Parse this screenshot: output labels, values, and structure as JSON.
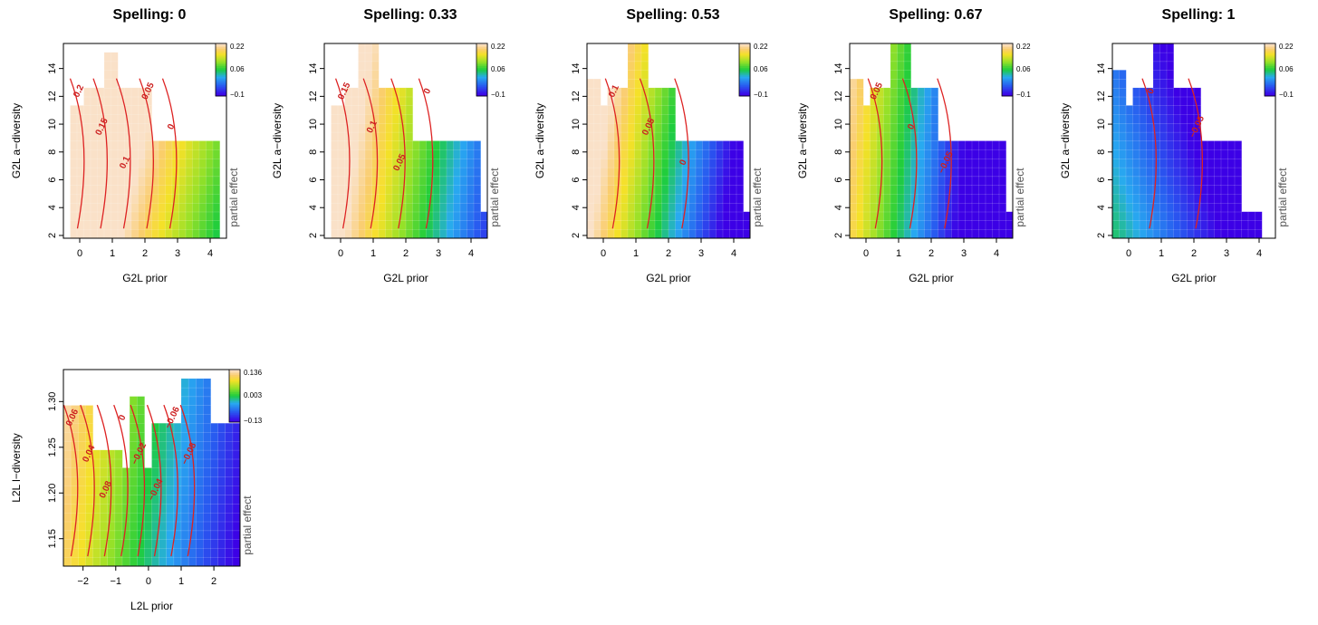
{
  "chart_data": [
    {
      "type": "heatmap",
      "title": "Spelling: 0",
      "xlabel": "G2L prior",
      "ylabel": "G2L a−diversity",
      "zlabel": "partial effect",
      "xlim": [
        -0.5,
        4.5
      ],
      "ylim": [
        1.8,
        15.8
      ],
      "xticks": [
        0,
        1,
        2,
        3,
        4
      ],
      "yticks": [
        2,
        4,
        6,
        8,
        10,
        12,
        14
      ],
      "colorbar": {
        "min": -0.1,
        "max": 0.22,
        "ticks": [
          "0.22",
          "0.06",
          "−0.1"
        ]
      },
      "z": {
        "a": 0.28,
        "bx": -0.056,
        "by": 0.006
      },
      "contours": [
        "0.2",
        "0.15",
        "0.1",
        "0.05",
        "0"
      ],
      "region": [
        [
          -0.2,
          1.3,
          8
        ],
        [
          -0.2,
          1.8,
          10
        ],
        [
          -0.2,
          2.2,
          11.5
        ],
        [
          0.1,
          2.3,
          12.5
        ],
        [
          0.8,
          1.2,
          15
        ],
        [
          2.0,
          4.2,
          8.5
        ],
        [
          2.4,
          4.3,
          4
        ],
        [
          3.1,
          4.0,
          2
        ]
      ]
    },
    {
      "type": "heatmap",
      "title": "Spelling: 0.33",
      "xlabel": "G2L prior",
      "ylabel": "G2L a−diversity",
      "zlabel": "partial effect",
      "xlim": [
        -0.5,
        4.5
      ],
      "ylim": [
        1.8,
        15.8
      ],
      "xticks": [
        0,
        1,
        2,
        3,
        4
      ],
      "yticks": [
        2,
        4,
        6,
        8,
        10,
        12,
        14
      ],
      "colorbar": {
        "min": -0.1,
        "max": 0.22,
        "ticks": [
          "0.22",
          "0.06",
          "−0.1"
        ]
      },
      "z": {
        "a": 0.22,
        "bx": -0.065,
        "by": 0.004
      },
      "contours": [
        "0.15",
        "0.1",
        "0.05",
        "0"
      ],
      "region": [
        [
          -0.2,
          1.3,
          8
        ],
        [
          -0.2,
          1.8,
          10
        ],
        [
          -0.2,
          2.2,
          11.5
        ],
        [
          0.1,
          2.3,
          12.5
        ],
        [
          0.5,
          1.2,
          15.5
        ],
        [
          2.0,
          4.3,
          8.5
        ],
        [
          2.4,
          4.5,
          4
        ],
        [
          3.1,
          4.2,
          2
        ]
      ]
    },
    {
      "type": "heatmap",
      "title": "Spelling: 0.53",
      "xlabel": "G2L prior",
      "ylabel": "G2L a−diversity",
      "zlabel": "partial effect",
      "xlim": [
        -0.5,
        4.5
      ],
      "ylim": [
        1.8,
        15.8
      ],
      "xticks": [
        0,
        1,
        2,
        3,
        4
      ],
      "yticks": [
        2,
        4,
        6,
        8,
        10,
        12,
        14
      ],
      "colorbar": {
        "min": -0.1,
        "max": 0.22,
        "ticks": [
          "0.22",
          "0.06",
          "−0.1"
        ]
      },
      "z": {
        "a": 0.18,
        "bx": -0.08,
        "by": 0.005
      },
      "contours": [
        "0.1",
        "0.05",
        "0"
      ],
      "region": [
        [
          -0.2,
          1.3,
          8
        ],
        [
          -0.2,
          1.8,
          10
        ],
        [
          -0.2,
          2.2,
          11.5
        ],
        [
          0.1,
          2.3,
          12.5
        ],
        [
          0.8,
          1.3,
          15.5
        ],
        [
          -0.4,
          0,
          13
        ],
        [
          2.0,
          4.3,
          8.5
        ],
        [
          2.4,
          4.5,
          4
        ],
        [
          3.1,
          4.2,
          2
        ]
      ]
    },
    {
      "type": "heatmap",
      "title": "Spelling: 0.67",
      "xlabel": "G2L prior",
      "ylabel": "G2L a−diversity",
      "zlabel": "partial effect",
      "xlim": [
        -0.5,
        4.5
      ],
      "ylim": [
        1.8,
        15.8
      ],
      "xticks": [
        0,
        1,
        2,
        3,
        4
      ],
      "yticks": [
        2,
        4,
        6,
        8,
        10,
        12,
        14
      ],
      "colorbar": {
        "min": -0.1,
        "max": 0.22,
        "ticks": [
          "0.22",
          "0.06",
          "−0.1"
        ]
      },
      "z": {
        "a": 0.13,
        "bx": -0.085,
        "by": 0.003
      },
      "contours": [
        "0.05",
        "0",
        "−0.05"
      ],
      "region": [
        [
          -0.2,
          1.3,
          8
        ],
        [
          -0.2,
          1.8,
          10
        ],
        [
          -0.2,
          2.2,
          11.5
        ],
        [
          0.1,
          2.3,
          12.5
        ],
        [
          0.8,
          1.3,
          15.5
        ],
        [
          -0.4,
          0,
          13
        ],
        [
          2.0,
          4.3,
          8.5
        ],
        [
          2.4,
          4.5,
          4
        ],
        [
          3.1,
          4.2,
          2
        ]
      ]
    },
    {
      "type": "heatmap",
      "title": "Spelling: 1",
      "xlabel": "G2L prior",
      "ylabel": "G2L a−diversity",
      "zlabel": "partial effect",
      "xlim": [
        -0.5,
        4.5
      ],
      "ylim": [
        1.8,
        15.8
      ],
      "xticks": [
        0,
        1,
        2,
        3,
        4
      ],
      "yticks": [
        2,
        4,
        6,
        8,
        10,
        12,
        14
      ],
      "colorbar": {
        "min": -0.1,
        "max": 0.22,
        "ticks": [
          "0.22",
          "0.06",
          "−0.1"
        ]
      },
      "z": {
        "a": 0.04,
        "bx": -0.045,
        "by": -0.006
      },
      "contours": [
        "0",
        "−0.05"
      ],
      "region": [
        [
          -0.2,
          1.3,
          8
        ],
        [
          -0.2,
          1.8,
          10
        ],
        [
          -0.2,
          2.2,
          11.5
        ],
        [
          0.1,
          2.3,
          12.5
        ],
        [
          0.8,
          1.3,
          15.5
        ],
        [
          -0.4,
          0,
          14
        ],
        [
          2.0,
          3.5,
          8.5
        ],
        [
          2.6,
          4.0,
          4
        ],
        [
          3.1,
          4.0,
          2
        ]
      ]
    },
    {
      "type": "heatmap",
      "title": "",
      "xlabel": "L2L prior",
      "ylabel": "L2L l−diversity",
      "zlabel": "partial effect",
      "xlim": [
        -2.6,
        2.8
      ],
      "ylim": [
        1.12,
        1.335
      ],
      "xticks": [
        -2,
        -1,
        0,
        1,
        2
      ],
      "yticks": [
        1.15,
        1.2,
        1.25,
        1.3
      ],
      "colorbar": {
        "min": -0.13,
        "max": 0.136,
        "ticks": [
          "0.136",
          "0.003",
          "−0.13"
        ]
      },
      "z": {
        "a": 0.0,
        "bx": -0.045,
        "by": 0.15,
        "ybase": 1.2
      },
      "contours": [
        "0.06",
        "0.04",
        "0.08",
        "0",
        "−0.02",
        "−0.04",
        "−0.06",
        "−0.08"
      ],
      "region": [
        [
          -2.5,
          -1.8,
          1.3
        ],
        [
          -2.4,
          -0.8,
          1.25
        ],
        [
          -1.2,
          1.0,
          1.23
        ],
        [
          0.2,
          2.8,
          1.28
        ],
        [
          1.0,
          1.9,
          1.33
        ],
        [
          -0.6,
          -0.1,
          1.31
        ],
        [
          -1.0,
          2.2,
          1.14
        ],
        [
          -2.5,
          -1.9,
          1.125
        ]
      ]
    }
  ]
}
